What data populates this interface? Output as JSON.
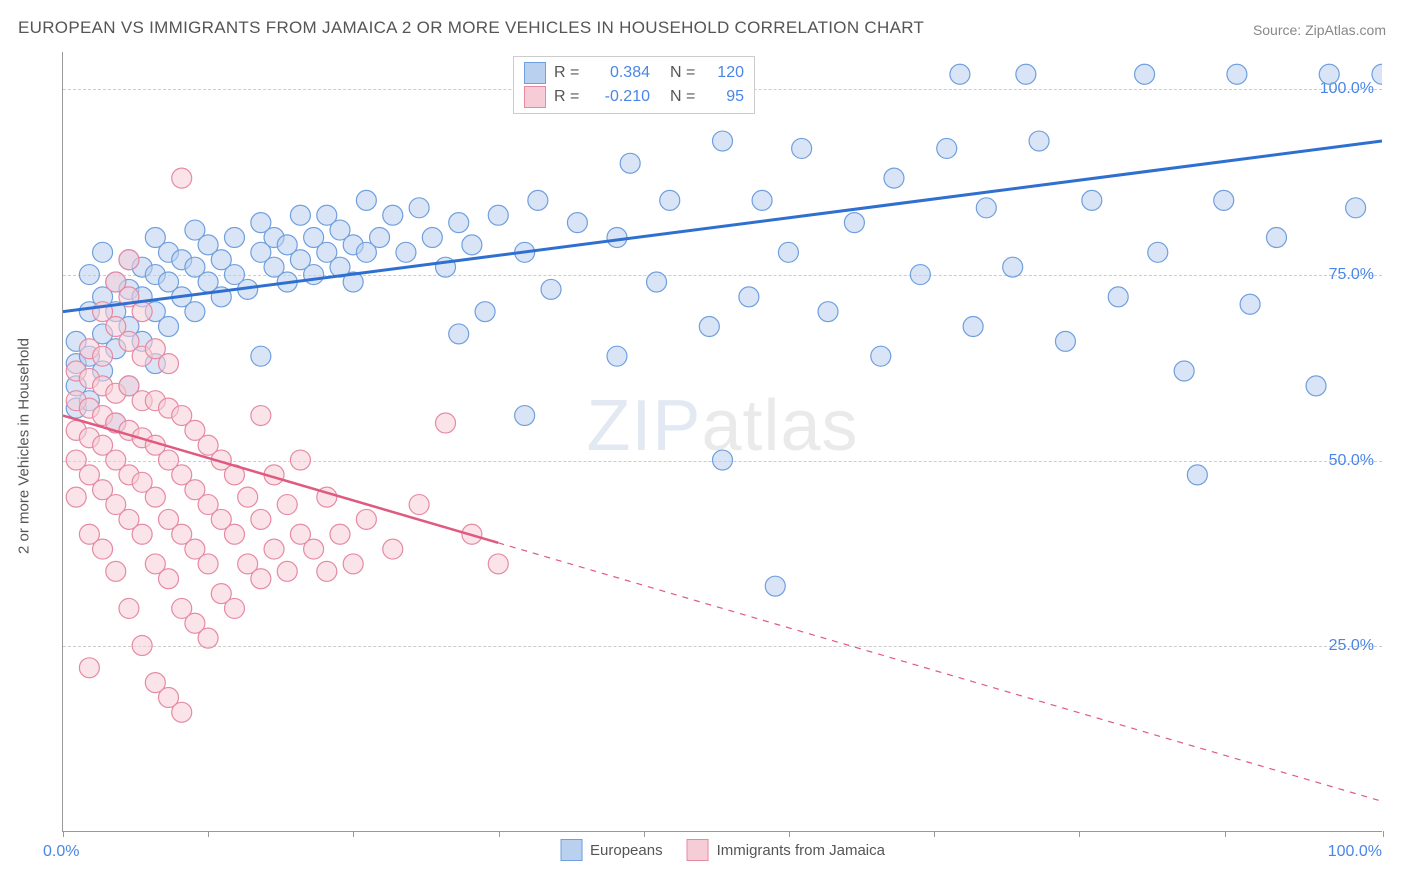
{
  "title": "EUROPEAN VS IMMIGRANTS FROM JAMAICA 2 OR MORE VEHICLES IN HOUSEHOLD CORRELATION CHART",
  "source_prefix": "Source: ",
  "source_name": "ZipAtlas.com",
  "watermark_a": "ZIP",
  "watermark_b": "atlas",
  "yaxis_title": "2 or more Vehicles in Household",
  "chart": {
    "type": "scatter",
    "xlim": [
      0,
      100
    ],
    "ylim": [
      0,
      105
    ],
    "grid_color": "#cccccc",
    "background_color": "#ffffff",
    "marker_radius": 10,
    "marker_opacity": 0.55,
    "marker_stroke_width": 1.2,
    "yticks": [
      {
        "y": 25,
        "label": "25.0%"
      },
      {
        "y": 50,
        "label": "50.0%"
      },
      {
        "y": 75,
        "label": "75.0%"
      },
      {
        "y": 100,
        "label": "100.0%"
      }
    ],
    "xticks": [
      0,
      11,
      22,
      33,
      44,
      55,
      66,
      77,
      88,
      100
    ],
    "xaxis_min_label": "0.0%",
    "xaxis_max_label": "100.0%"
  },
  "series": [
    {
      "name": "Europeans",
      "fill": "#b9d0ef",
      "stroke": "#6f9fde",
      "line_color": "#2f6fd0",
      "line_width": 3,
      "R": "0.384",
      "N": "120",
      "trend": {
        "x1": 0,
        "y1": 70,
        "x2": 100,
        "y2": 93,
        "solid_until": 100
      },
      "points": [
        [
          1,
          57
        ],
        [
          1,
          60
        ],
        [
          1,
          63
        ],
        [
          1,
          66
        ],
        [
          2,
          58
        ],
        [
          2,
          64
        ],
        [
          2,
          70
        ],
        [
          2,
          75
        ],
        [
          3,
          62
        ],
        [
          3,
          67
        ],
        [
          3,
          72
        ],
        [
          3,
          78
        ],
        [
          4,
          55
        ],
        [
          4,
          65
        ],
        [
          4,
          70
        ],
        [
          4,
          74
        ],
        [
          5,
          60
        ],
        [
          5,
          68
        ],
        [
          5,
          73
        ],
        [
          5,
          77
        ],
        [
          6,
          66
        ],
        [
          6,
          72
        ],
        [
          6,
          76
        ],
        [
          7,
          63
        ],
        [
          7,
          70
        ],
        [
          7,
          75
        ],
        [
          7,
          80
        ],
        [
          8,
          68
        ],
        [
          8,
          74
        ],
        [
          8,
          78
        ],
        [
          9,
          72
        ],
        [
          9,
          77
        ],
        [
          10,
          70
        ],
        [
          10,
          76
        ],
        [
          10,
          81
        ],
        [
          11,
          74
        ],
        [
          11,
          79
        ],
        [
          12,
          72
        ],
        [
          12,
          77
        ],
        [
          13,
          75
        ],
        [
          13,
          80
        ],
        [
          14,
          73
        ],
        [
          15,
          64
        ],
        [
          15,
          78
        ],
        [
          15,
          82
        ],
        [
          16,
          76
        ],
        [
          16,
          80
        ],
        [
          17,
          74
        ],
        [
          17,
          79
        ],
        [
          18,
          77
        ],
        [
          18,
          83
        ],
        [
          19,
          75
        ],
        [
          19,
          80
        ],
        [
          20,
          78
        ],
        [
          20,
          83
        ],
        [
          21,
          76
        ],
        [
          21,
          81
        ],
        [
          22,
          74
        ],
        [
          22,
          79
        ],
        [
          23,
          78
        ],
        [
          23,
          85
        ],
        [
          24,
          80
        ],
        [
          25,
          83
        ],
        [
          26,
          78
        ],
        [
          27,
          84
        ],
        [
          28,
          80
        ],
        [
          29,
          76
        ],
        [
          30,
          67
        ],
        [
          30,
          82
        ],
        [
          31,
          79
        ],
        [
          32,
          70
        ],
        [
          33,
          83
        ],
        [
          35,
          56
        ],
        [
          35,
          78
        ],
        [
          36,
          85
        ],
        [
          37,
          73
        ],
        [
          38,
          102
        ],
        [
          39,
          82
        ],
        [
          40,
          102
        ],
        [
          42,
          64
        ],
        [
          42,
          80
        ],
        [
          43,
          90
        ],
        [
          45,
          74
        ],
        [
          46,
          85
        ],
        [
          48,
          102
        ],
        [
          49,
          68
        ],
        [
          50,
          50
        ],
        [
          50,
          93
        ],
        [
          52,
          72
        ],
        [
          53,
          85
        ],
        [
          54,
          33
        ],
        [
          55,
          78
        ],
        [
          56,
          92
        ],
        [
          58,
          70
        ],
        [
          60,
          82
        ],
        [
          62,
          64
        ],
        [
          63,
          88
        ],
        [
          65,
          75
        ],
        [
          67,
          92
        ],
        [
          68,
          102
        ],
        [
          69,
          68
        ],
        [
          70,
          84
        ],
        [
          72,
          76
        ],
        [
          73,
          102
        ],
        [
          74,
          93
        ],
        [
          76,
          66
        ],
        [
          78,
          85
        ],
        [
          80,
          72
        ],
        [
          82,
          102
        ],
        [
          83,
          78
        ],
        [
          85,
          62
        ],
        [
          86,
          48
        ],
        [
          88,
          85
        ],
        [
          89,
          102
        ],
        [
          90,
          71
        ],
        [
          92,
          80
        ],
        [
          95,
          60
        ],
        [
          96,
          102
        ],
        [
          98,
          84
        ],
        [
          100,
          102
        ]
      ]
    },
    {
      "name": "Immigrants from Jamaica",
      "fill": "#f6cdd7",
      "stroke": "#e68aa3",
      "line_color": "#e05a7f",
      "line_width": 2.5,
      "R": "-0.210",
      "N": "95",
      "trend": {
        "x1": 0,
        "y1": 56,
        "x2": 100,
        "y2": 4,
        "solid_until": 33
      },
      "points": [
        [
          1,
          45
        ],
        [
          1,
          50
        ],
        [
          1,
          54
        ],
        [
          1,
          58
        ],
        [
          1,
          62
        ],
        [
          2,
          40
        ],
        [
          2,
          48
        ],
        [
          2,
          53
        ],
        [
          2,
          57
        ],
        [
          2,
          61
        ],
        [
          2,
          65
        ],
        [
          3,
          38
        ],
        [
          3,
          46
        ],
        [
          3,
          52
        ],
        [
          3,
          56
        ],
        [
          3,
          60
        ],
        [
          3,
          64
        ],
        [
          3,
          70
        ],
        [
          4,
          35
        ],
        [
          4,
          44
        ],
        [
          4,
          50
        ],
        [
          4,
          55
        ],
        [
          4,
          59
        ],
        [
          4,
          68
        ],
        [
          4,
          74
        ],
        [
          5,
          30
        ],
        [
          5,
          42
        ],
        [
          5,
          48
        ],
        [
          5,
          54
        ],
        [
          5,
          60
        ],
        [
          5,
          66
        ],
        [
          5,
          72
        ],
        [
          5,
          77
        ],
        [
          6,
          25
        ],
        [
          6,
          40
        ],
        [
          6,
          47
        ],
        [
          6,
          53
        ],
        [
          6,
          58
        ],
        [
          6,
          64
        ],
        [
          6,
          70
        ],
        [
          7,
          20
        ],
        [
          7,
          36
        ],
        [
          7,
          45
        ],
        [
          7,
          52
        ],
        [
          7,
          58
        ],
        [
          7,
          65
        ],
        [
          8,
          18
        ],
        [
          8,
          34
        ],
        [
          8,
          42
        ],
        [
          8,
          50
        ],
        [
          8,
          57
        ],
        [
          8,
          63
        ],
        [
          9,
          16
        ],
        [
          9,
          30
        ],
        [
          9,
          40
        ],
        [
          9,
          48
        ],
        [
          9,
          56
        ],
        [
          9,
          88
        ],
        [
          10,
          28
        ],
        [
          10,
          38
        ],
        [
          10,
          46
        ],
        [
          10,
          54
        ],
        [
          11,
          26
        ],
        [
          11,
          36
        ],
        [
          11,
          44
        ],
        [
          11,
          52
        ],
        [
          12,
          32
        ],
        [
          12,
          42
        ],
        [
          12,
          50
        ],
        [
          13,
          30
        ],
        [
          13,
          40
        ],
        [
          13,
          48
        ],
        [
          14,
          36
        ],
        [
          14,
          45
        ],
        [
          15,
          34
        ],
        [
          15,
          42
        ],
        [
          15,
          56
        ],
        [
          16,
          38
        ],
        [
          16,
          48
        ],
        [
          17,
          35
        ],
        [
          17,
          44
        ],
        [
          18,
          40
        ],
        [
          18,
          50
        ],
        [
          19,
          38
        ],
        [
          20,
          35
        ],
        [
          20,
          45
        ],
        [
          21,
          40
        ],
        [
          22,
          36
        ],
        [
          23,
          42
        ],
        [
          25,
          38
        ],
        [
          27,
          44
        ],
        [
          29,
          55
        ],
        [
          31,
          40
        ],
        [
          33,
          36
        ],
        [
          2,
          22
        ]
      ]
    }
  ],
  "legend": {
    "items": [
      {
        "label": "Europeans",
        "fill": "#b9d0ef",
        "stroke": "#6f9fde"
      },
      {
        "label": "Immigrants from Jamaica",
        "fill": "#f6cdd7",
        "stroke": "#e68aa3"
      }
    ]
  }
}
